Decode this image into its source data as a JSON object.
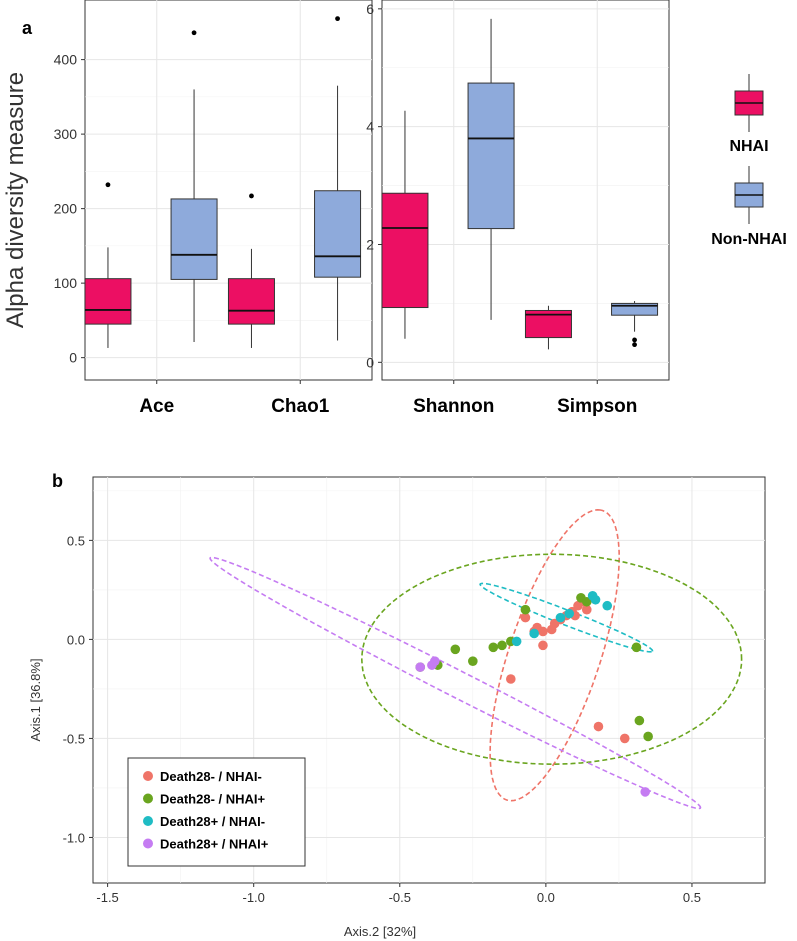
{
  "panel_a": {
    "letter": "a"
  },
  "panel_b": {
    "letter": "b"
  },
  "colors": {
    "nhai": "#ec0f63",
    "non_nhai": "#8eaadb",
    "death28neg_nhaineg": "#ef7468",
    "death28neg_nhaipos": "#6aa51f",
    "death28pos_nhaineg": "#1fbcc4",
    "death28pos_nhaipos": "#c57cf2"
  },
  "chart_data": [
    {
      "type": "boxplot",
      "panel": "a-left",
      "ylabel": "Alpha diversity measure",
      "ylim": [
        -30,
        480
      ],
      "yticks": [
        0,
        100,
        200,
        300,
        400
      ],
      "grid": true,
      "categories": [
        "Ace",
        "Chao1"
      ],
      "series": [
        {
          "name": "NHAI",
          "boxes": [
            {
              "category": "Ace",
              "min": 13,
              "q1": 45,
              "median": 64,
              "q3": 106,
              "max": 148,
              "outliers": [
                232
              ]
            },
            {
              "category": "Chao1",
              "min": 13,
              "q1": 45,
              "median": 63,
              "q3": 106,
              "max": 146,
              "outliers": [
                217
              ]
            }
          ]
        },
        {
          "name": "Non-NHAI",
          "boxes": [
            {
              "category": "Ace",
              "min": 21,
              "q1": 105,
              "median": 138,
              "q3": 213,
              "max": 360,
              "outliers": [
                436
              ]
            },
            {
              "category": "Chao1",
              "min": 23,
              "q1": 108,
              "median": 136,
              "q3": 224,
              "max": 365,
              "outliers": [
                455
              ]
            }
          ]
        }
      ]
    },
    {
      "type": "boxplot",
      "panel": "a-right",
      "ylim": [
        -0.3,
        6.15
      ],
      "yticks": [
        0,
        2,
        4,
        6
      ],
      "grid": true,
      "categories": [
        "Shannon",
        "Simpson"
      ],
      "series": [
        {
          "name": "NHAI",
          "boxes": [
            {
              "category": "Shannon",
              "min": 0.4,
              "q1": 0.93,
              "median": 2.28,
              "q3": 2.87,
              "max": 4.27,
              "outliers": []
            },
            {
              "category": "Simpson",
              "min": 0.22,
              "q1": 0.42,
              "median": 0.81,
              "q3": 0.88,
              "max": 0.96,
              "outliers": []
            }
          ]
        },
        {
          "name": "Non-NHAI",
          "boxes": [
            {
              "category": "Shannon",
              "min": 0.72,
              "q1": 2.27,
              "median": 3.8,
              "q3": 4.74,
              "max": 5.83,
              "outliers": []
            },
            {
              "category": "Simpson",
              "min": 0.52,
              "q1": 0.8,
              "median": 0.96,
              "q3": 1.0,
              "max": 1.04,
              "outliers": [
                0.38,
                0.3
              ]
            }
          ]
        }
      ]
    },
    {
      "type": "scatter",
      "panel": "b",
      "xlabel": "Axis.2   [32%]",
      "ylabel": "Axis.1   [36.8%]",
      "xlim": [
        -1.55,
        0.75
      ],
      "ylim": [
        -1.23,
        0.82
      ],
      "xticks": [
        -1.5,
        -1.0,
        -0.5,
        0.0,
        0.5
      ],
      "xtick_labels": [
        "-1.5",
        "-1.0",
        "-0.5",
        "0.0",
        "0.5"
      ],
      "yticks": [
        0.5,
        0.0,
        -0.5,
        -1.0
      ],
      "ytick_labels": [
        "0.5",
        "0.0",
        "-0.5",
        "-1.0"
      ],
      "grid": true,
      "legend_position": "bottom-left",
      "series": [
        {
          "name": "Death28- / NHAI-",
          "points": [
            [
              -0.12,
              -0.2
            ],
            [
              -0.07,
              0.11
            ],
            [
              -0.04,
              0.04
            ],
            [
              -0.03,
              0.06
            ],
            [
              -0.01,
              0.04
            ],
            [
              -0.01,
              -0.03
            ],
            [
              0.02,
              0.05
            ],
            [
              0.03,
              0.08
            ],
            [
              0.05,
              0.1
            ],
            [
              0.07,
              0.12
            ],
            [
              0.09,
              0.14
            ],
            [
              0.1,
              0.12
            ],
            [
              0.11,
              0.17
            ],
            [
              0.13,
              0.19
            ],
            [
              0.14,
              0.15
            ],
            [
              0.18,
              -0.44
            ],
            [
              0.27,
              -0.5
            ]
          ],
          "ellipse": {
            "cx": 0.03,
            "cy": -0.08,
            "rx": 0.75,
            "ry": 0.16,
            "angle_deg": 78
          }
        },
        {
          "name": "Death28- / NHAI+",
          "points": [
            [
              -0.43,
              -0.14
            ],
            [
              -0.37,
              -0.13
            ],
            [
              -0.31,
              -0.05
            ],
            [
              -0.25,
              -0.11
            ],
            [
              -0.18,
              -0.04
            ],
            [
              -0.15,
              -0.03
            ],
            [
              -0.12,
              -0.01
            ],
            [
              -0.07,
              0.15
            ],
            [
              0.12,
              0.21
            ],
            [
              0.14,
              0.19
            ],
            [
              0.31,
              -0.04
            ],
            [
              0.32,
              -0.41
            ],
            [
              0.35,
              -0.49
            ]
          ],
          "ellipse": {
            "cx": 0.02,
            "cy": -0.1,
            "rx": 0.65,
            "ry": 0.53,
            "angle_deg": 0
          }
        },
        {
          "name": "Death28+ / NHAI-",
          "points": [
            [
              -0.1,
              -0.01
            ],
            [
              -0.04,
              0.03
            ],
            [
              0.05,
              0.11
            ],
            [
              0.08,
              0.13
            ],
            [
              0.16,
              0.22
            ],
            [
              0.17,
              0.2
            ],
            [
              0.21,
              0.17
            ]
          ],
          "ellipse": {
            "cx": 0.07,
            "cy": 0.11,
            "rx": 0.34,
            "ry": 0.035,
            "angle_deg": -30
          }
        },
        {
          "name": "Death28+ / NHAI+",
          "points": [
            [
              -0.43,
              -0.14
            ],
            [
              -0.38,
              -0.11
            ],
            [
              -0.39,
              -0.13
            ],
            [
              0.34,
              -0.77
            ]
          ],
          "ellipse": {
            "cx": -0.31,
            "cy": -0.22,
            "rx": 1.05,
            "ry": 0.06,
            "angle_deg": -37
          }
        }
      ]
    }
  ]
}
